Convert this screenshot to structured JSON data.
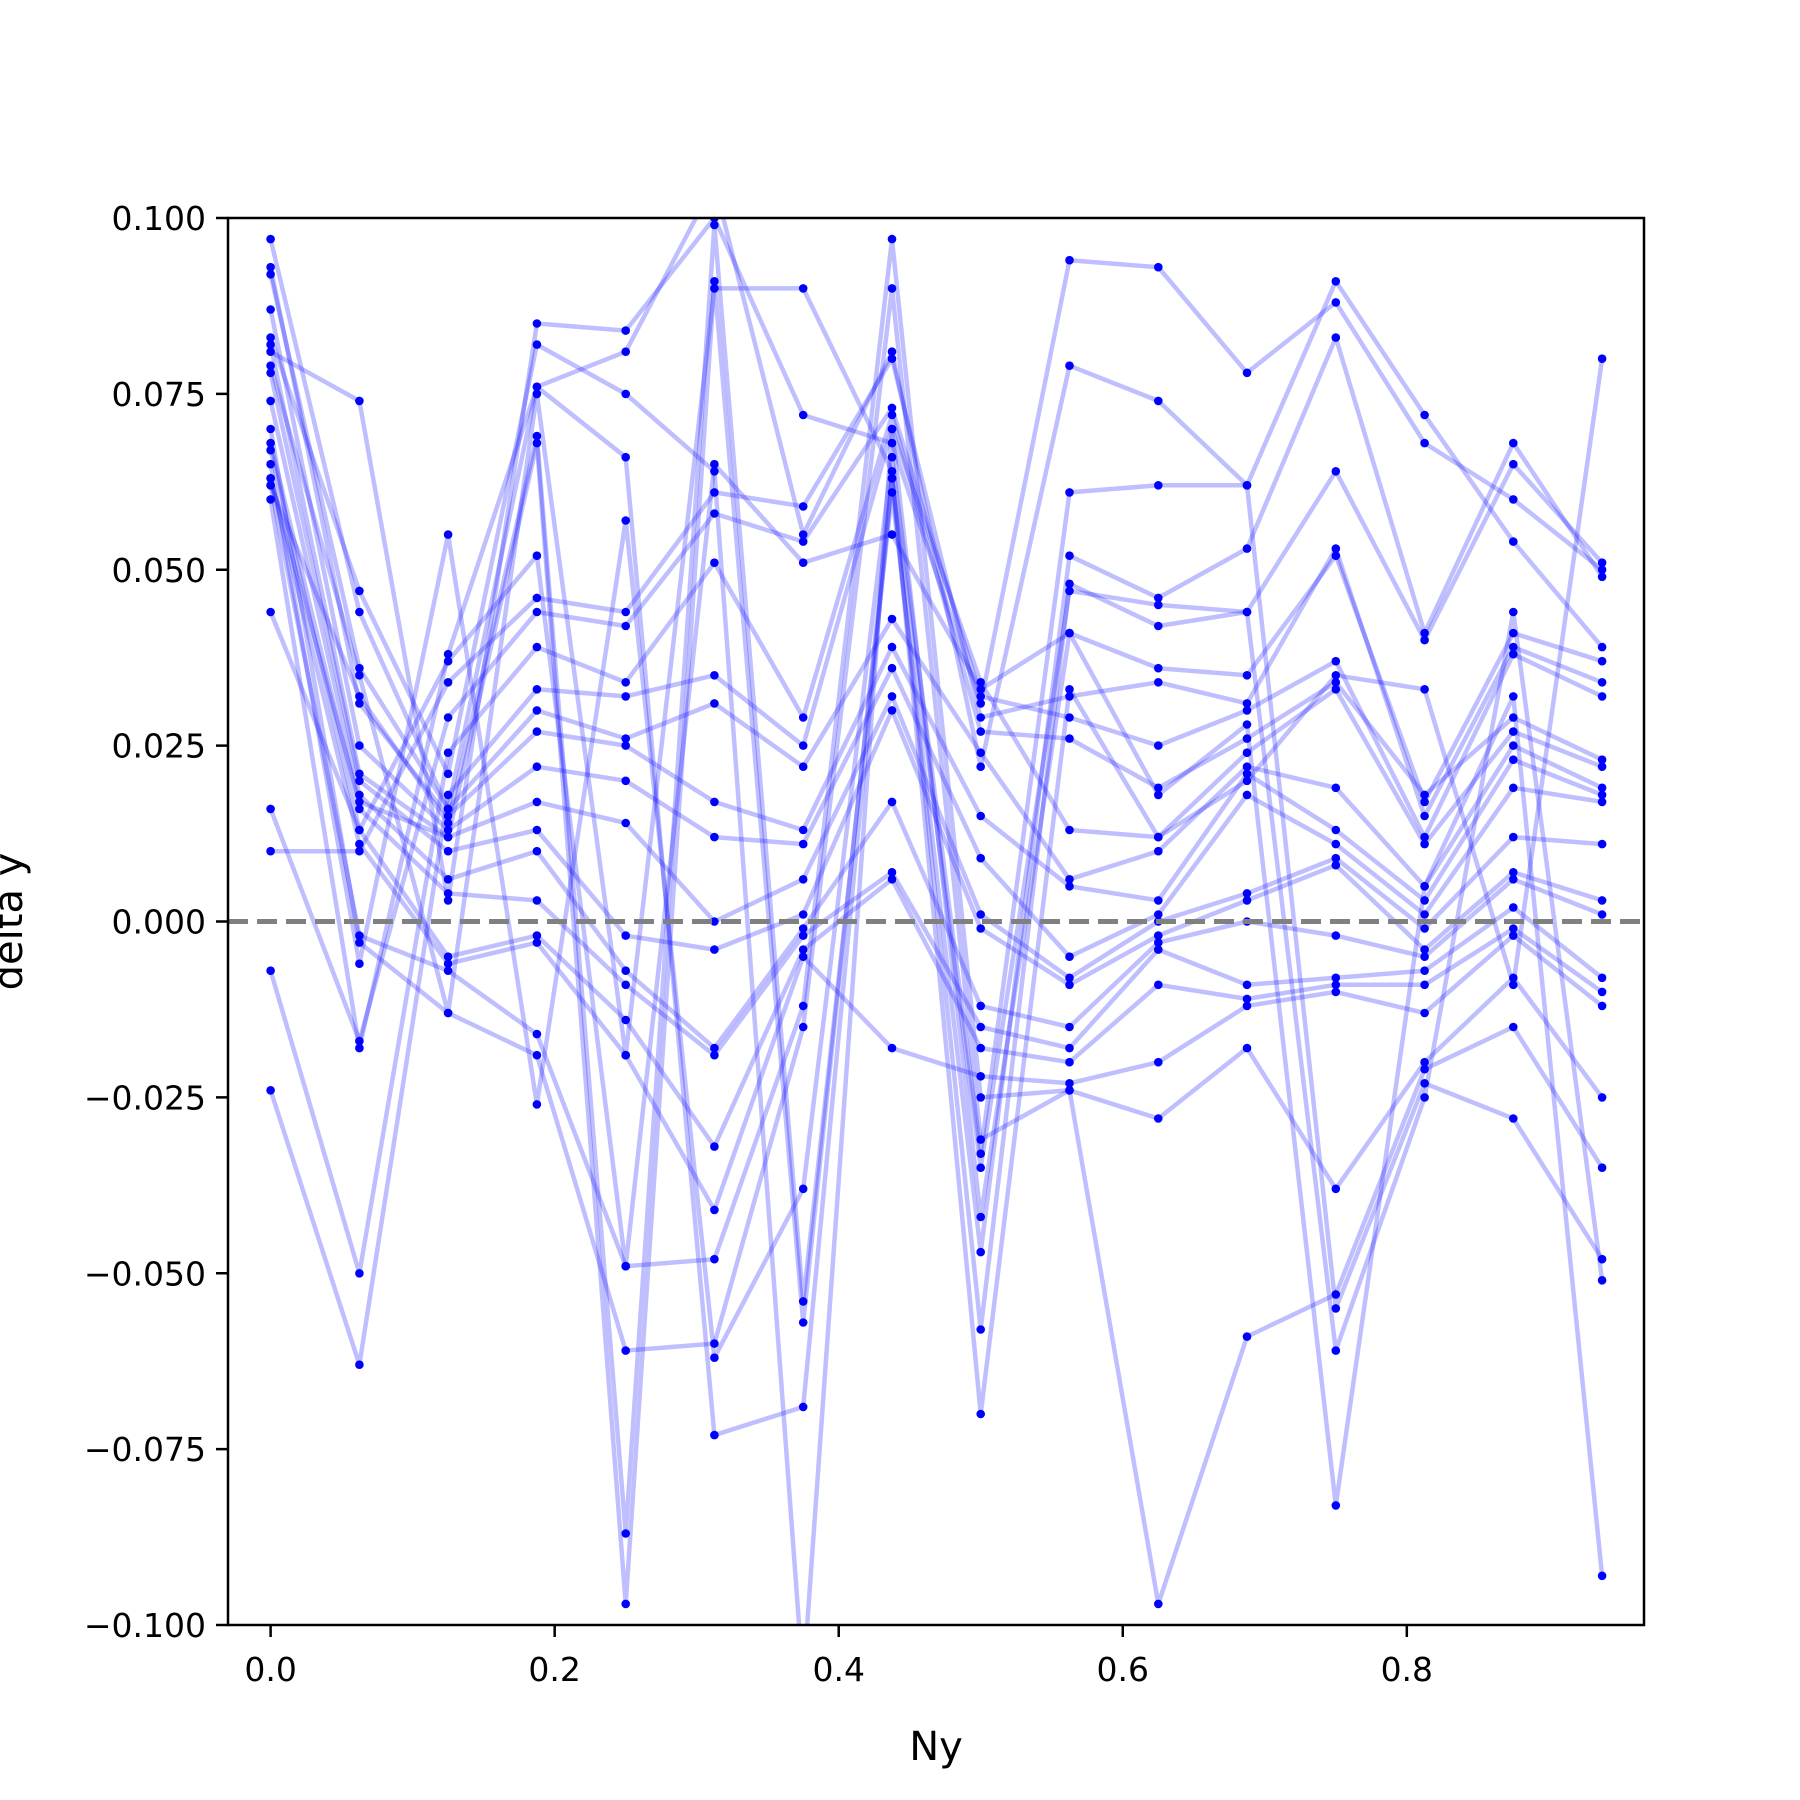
{
  "chart_data": {
    "type": "line",
    "title": "",
    "xlabel": "Ny",
    "ylabel": "delta y",
    "xlim": [
      -0.03,
      0.967
    ],
    "ylim": [
      -0.1,
      0.1
    ],
    "grid": false,
    "legend": "none",
    "line_color": "#0000ff",
    "line_opacity": 0.25,
    "marker_color": "#0000ff",
    "reference_line": {
      "y": 0.0,
      "color": "#808080",
      "style": "dashed"
    },
    "x_ticks": [
      0.0,
      0.2,
      0.4,
      0.6,
      0.8
    ],
    "x_tick_labels": [
      "0.0",
      "0.2",
      "0.4",
      "0.6",
      "0.8"
    ],
    "y_ticks": [
      -0.1,
      -0.075,
      -0.05,
      -0.025,
      0.0,
      0.025,
      0.05,
      0.075,
      0.1
    ],
    "y_tick_labels": [
      "−0.100",
      "−0.075",
      "−0.050",
      "−0.025",
      "0.000",
      "0.025",
      "0.050",
      "0.075",
      "0.100"
    ],
    "x": [
      0.0,
      0.0625,
      0.125,
      0.1875,
      0.25,
      0.3125,
      0.375,
      0.4375,
      0.5,
      0.5625,
      0.625,
      0.6875,
      0.75,
      0.8125,
      0.875,
      0.9375
    ],
    "series": [
      {
        "values": [
          0.081,
          0.074,
          0.003,
          0.085,
          0.084,
          0.1,
          0.072,
          0.068,
          0.031,
          0.094,
          0.093,
          0.078,
          0.088,
          0.068,
          0.06,
          0.05
        ]
      },
      {
        "values": [
          0.092,
          0.036,
          0.016,
          0.076,
          0.081,
          0.105,
          0.055,
          0.081,
          0.022,
          0.079,
          0.074,
          0.062,
          0.091,
          0.072,
          0.054,
          0.039
        ]
      },
      {
        "values": [
          0.062,
          0.032,
          0.014,
          0.069,
          -0.087,
          0.099,
          -0.054,
          0.061,
          -0.047,
          0.052,
          0.046,
          0.053,
          0.083,
          0.041,
          0.068,
          0.049
        ]
      },
      {
        "values": [
          0.063,
          0.017,
          0.012,
          0.068,
          -0.097,
          0.091,
          -0.057,
          0.063,
          -0.058,
          0.048,
          0.042,
          0.044,
          0.064,
          0.04,
          0.065,
          0.051
        ]
      },
      {
        "values": [
          0.044,
          0.013,
          0.037,
          0.052,
          -0.049,
          0.065,
          0.051,
          0.055,
          0.033,
          0.041,
          0.036,
          0.035,
          0.052,
          0.017,
          0.041,
          0.037
        ]
      },
      {
        "values": [
          0.01,
          0.01,
          0.034,
          0.046,
          0.044,
          0.061,
          0.059,
          0.08,
          0.029,
          0.032,
          0.034,
          0.031,
          0.053,
          0.015,
          0.039,
          0.034
        ]
      },
      {
        "values": [
          0.016,
          -0.017,
          0.029,
          0.044,
          0.042,
          0.058,
          0.054,
          0.073,
          0.032,
          0.029,
          0.025,
          0.03,
          0.037,
          0.012,
          0.038,
          0.032
        ]
      },
      {
        "values": [
          -0.007,
          -0.05,
          0.024,
          0.039,
          0.034,
          0.051,
          0.029,
          0.072,
          0.027,
          0.026,
          0.019,
          0.026,
          0.034,
          0.018,
          0.029,
          0.023
        ]
      },
      {
        "values": [
          -0.024,
          -0.063,
          0.018,
          0.033,
          0.032,
          0.035,
          0.025,
          0.07,
          0.034,
          0.013,
          0.012,
          0.024,
          0.033,
          0.011,
          0.027,
          0.022
        ]
      },
      {
        "values": [
          0.097,
          0.044,
          0.016,
          0.03,
          0.026,
          0.031,
          0.022,
          0.043,
          0.024,
          0.006,
          0.01,
          0.022,
          0.019,
          0.005,
          0.025,
          0.019
        ]
      },
      {
        "values": [
          0.093,
          0.031,
          0.015,
          0.027,
          0.025,
          0.017,
          0.013,
          0.039,
          0.015,
          0.005,
          0.003,
          0.021,
          0.013,
          0.003,
          0.023,
          0.018
        ]
      },
      {
        "values": [
          0.087,
          0.025,
          0.013,
          0.022,
          0.02,
          0.012,
          0.011,
          0.036,
          0.009,
          -0.005,
          0.001,
          0.018,
          0.011,
          0.001,
          0.019,
          0.017
        ]
      },
      {
        "values": [
          0.082,
          0.021,
          0.012,
          0.017,
          0.014,
          0.0,
          0.006,
          0.032,
          0.001,
          -0.008,
          0.0,
          0.004,
          0.009,
          -0.001,
          0.012,
          0.011
        ]
      },
      {
        "values": [
          0.078,
          0.02,
          0.01,
          0.013,
          -0.002,
          -0.004,
          0.001,
          0.03,
          -0.001,
          -0.009,
          -0.002,
          0.003,
          0.008,
          -0.004,
          0.007,
          0.003
        ]
      },
      {
        "values": [
          0.074,
          0.018,
          0.006,
          0.01,
          -0.007,
          -0.018,
          -0.001,
          0.017,
          -0.012,
          -0.015,
          -0.003,
          0.0,
          -0.002,
          -0.005,
          0.006,
          0.001
        ]
      },
      {
        "values": [
          0.068,
          0.016,
          0.004,
          0.003,
          -0.009,
          -0.019,
          -0.002,
          0.007,
          -0.015,
          -0.018,
          -0.004,
          -0.009,
          -0.008,
          -0.007,
          0.002,
          -0.008
        ]
      },
      {
        "values": [
          0.067,
          0.013,
          -0.005,
          -0.002,
          -0.014,
          -0.032,
          -0.004,
          0.006,
          -0.018,
          -0.02,
          -0.009,
          -0.011,
          -0.009,
          -0.009,
          -0.001,
          -0.01
        ]
      },
      {
        "values": [
          0.063,
          0.011,
          -0.006,
          -0.003,
          -0.019,
          -0.041,
          -0.005,
          -0.018,
          -0.022,
          -0.023,
          -0.02,
          -0.012,
          -0.01,
          -0.013,
          -0.002,
          -0.012
        ]
      },
      {
        "values": [
          0.062,
          -0.002,
          -0.007,
          -0.016,
          -0.049,
          -0.048,
          -0.012,
          0.097,
          -0.025,
          -0.024,
          -0.028,
          -0.018,
          -0.038,
          -0.02,
          -0.008,
          -0.025
        ]
      },
      {
        "values": [
          0.07,
          -0.003,
          -0.013,
          -0.019,
          -0.061,
          -0.06,
          -0.015,
          0.09,
          -0.031,
          -0.024,
          -0.097,
          -0.059,
          -0.053,
          -0.021,
          -0.015,
          -0.035
        ]
      },
      {
        "values": [
          0.065,
          -0.006,
          0.055,
          -0.026,
          0.057,
          -0.062,
          -0.038,
          0.066,
          -0.033,
          0.061,
          0.062,
          0.062,
          -0.055,
          -0.023,
          -0.028,
          -0.048
        ]
      },
      {
        "values": [
          0.06,
          -0.018,
          0.038,
          0.076,
          0.066,
          -0.073,
          -0.069,
          0.063,
          -0.035,
          0.047,
          0.045,
          0.044,
          -0.061,
          -0.025,
          0.044,
          -0.051
        ]
      },
      {
        "values": [
          0.083,
          0.047,
          0.021,
          0.082,
          0.075,
          0.064,
          -0.108,
          0.07,
          -0.042,
          0.041,
          0.018,
          0.028,
          -0.083,
          0.005,
          0.032,
          -0.093
        ]
      },
      {
        "values": [
          0.079,
          0.035,
          -0.013,
          0.075,
          -0.019,
          0.09,
          0.09,
          0.064,
          -0.07,
          0.033,
          0.012,
          0.02,
          0.035,
          0.033,
          -0.009,
          0.08
        ]
      }
    ]
  }
}
